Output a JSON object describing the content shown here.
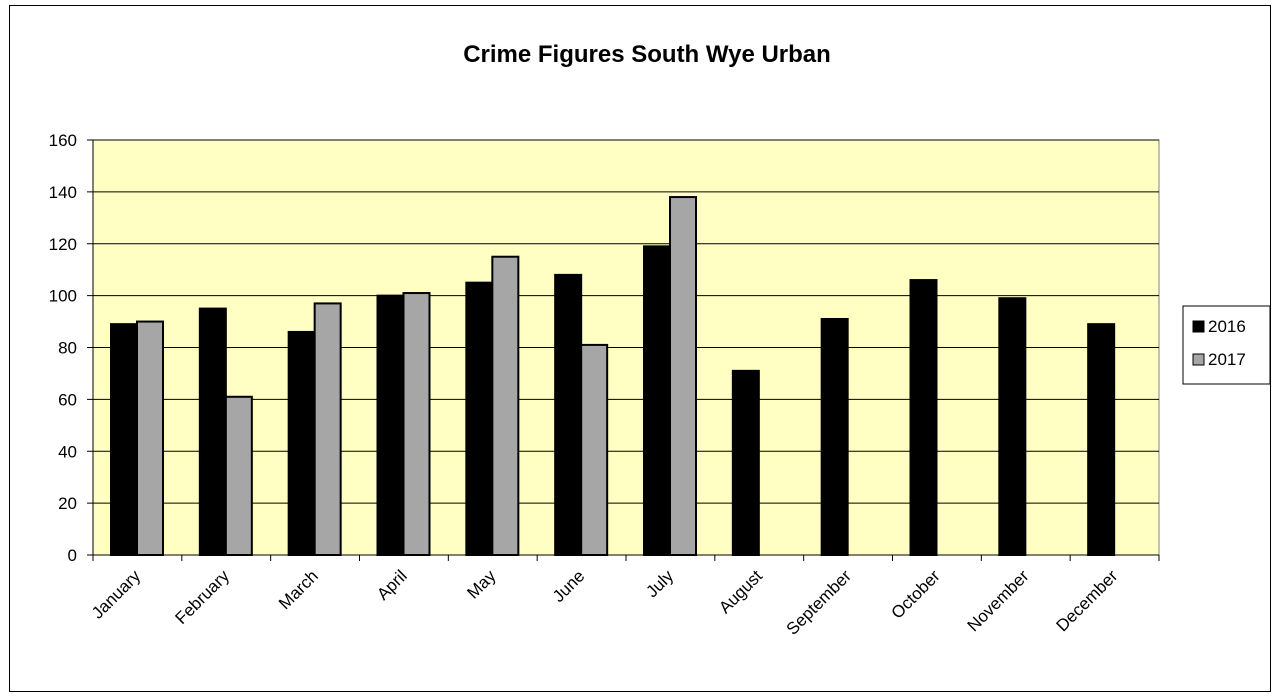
{
  "chart_data": {
    "type": "bar",
    "title": "Crime Figures South Wye Urban",
    "xlabel": "",
    "ylabel": "",
    "categories": [
      "January",
      "February",
      "March",
      "April",
      "May",
      "June",
      "July",
      "August",
      "September",
      "October",
      "November",
      "December"
    ],
    "series": [
      {
        "name": "2016",
        "color": "#000000",
        "values": [
          89,
          95,
          86,
          100,
          105,
          108,
          119,
          71,
          91,
          106,
          99,
          89
        ]
      },
      {
        "name": "2017",
        "color": "#a6a6a6",
        "values": [
          90,
          61,
          97,
          101,
          115,
          81,
          138,
          null,
          null,
          null,
          null,
          null
        ]
      }
    ],
    "ylim": [
      0,
      160
    ],
    "yticks": [
      0,
      20,
      40,
      60,
      80,
      100,
      120,
      140,
      160
    ],
    "grid": true,
    "plot_background": "#ffffc4",
    "legend_position": "right"
  }
}
